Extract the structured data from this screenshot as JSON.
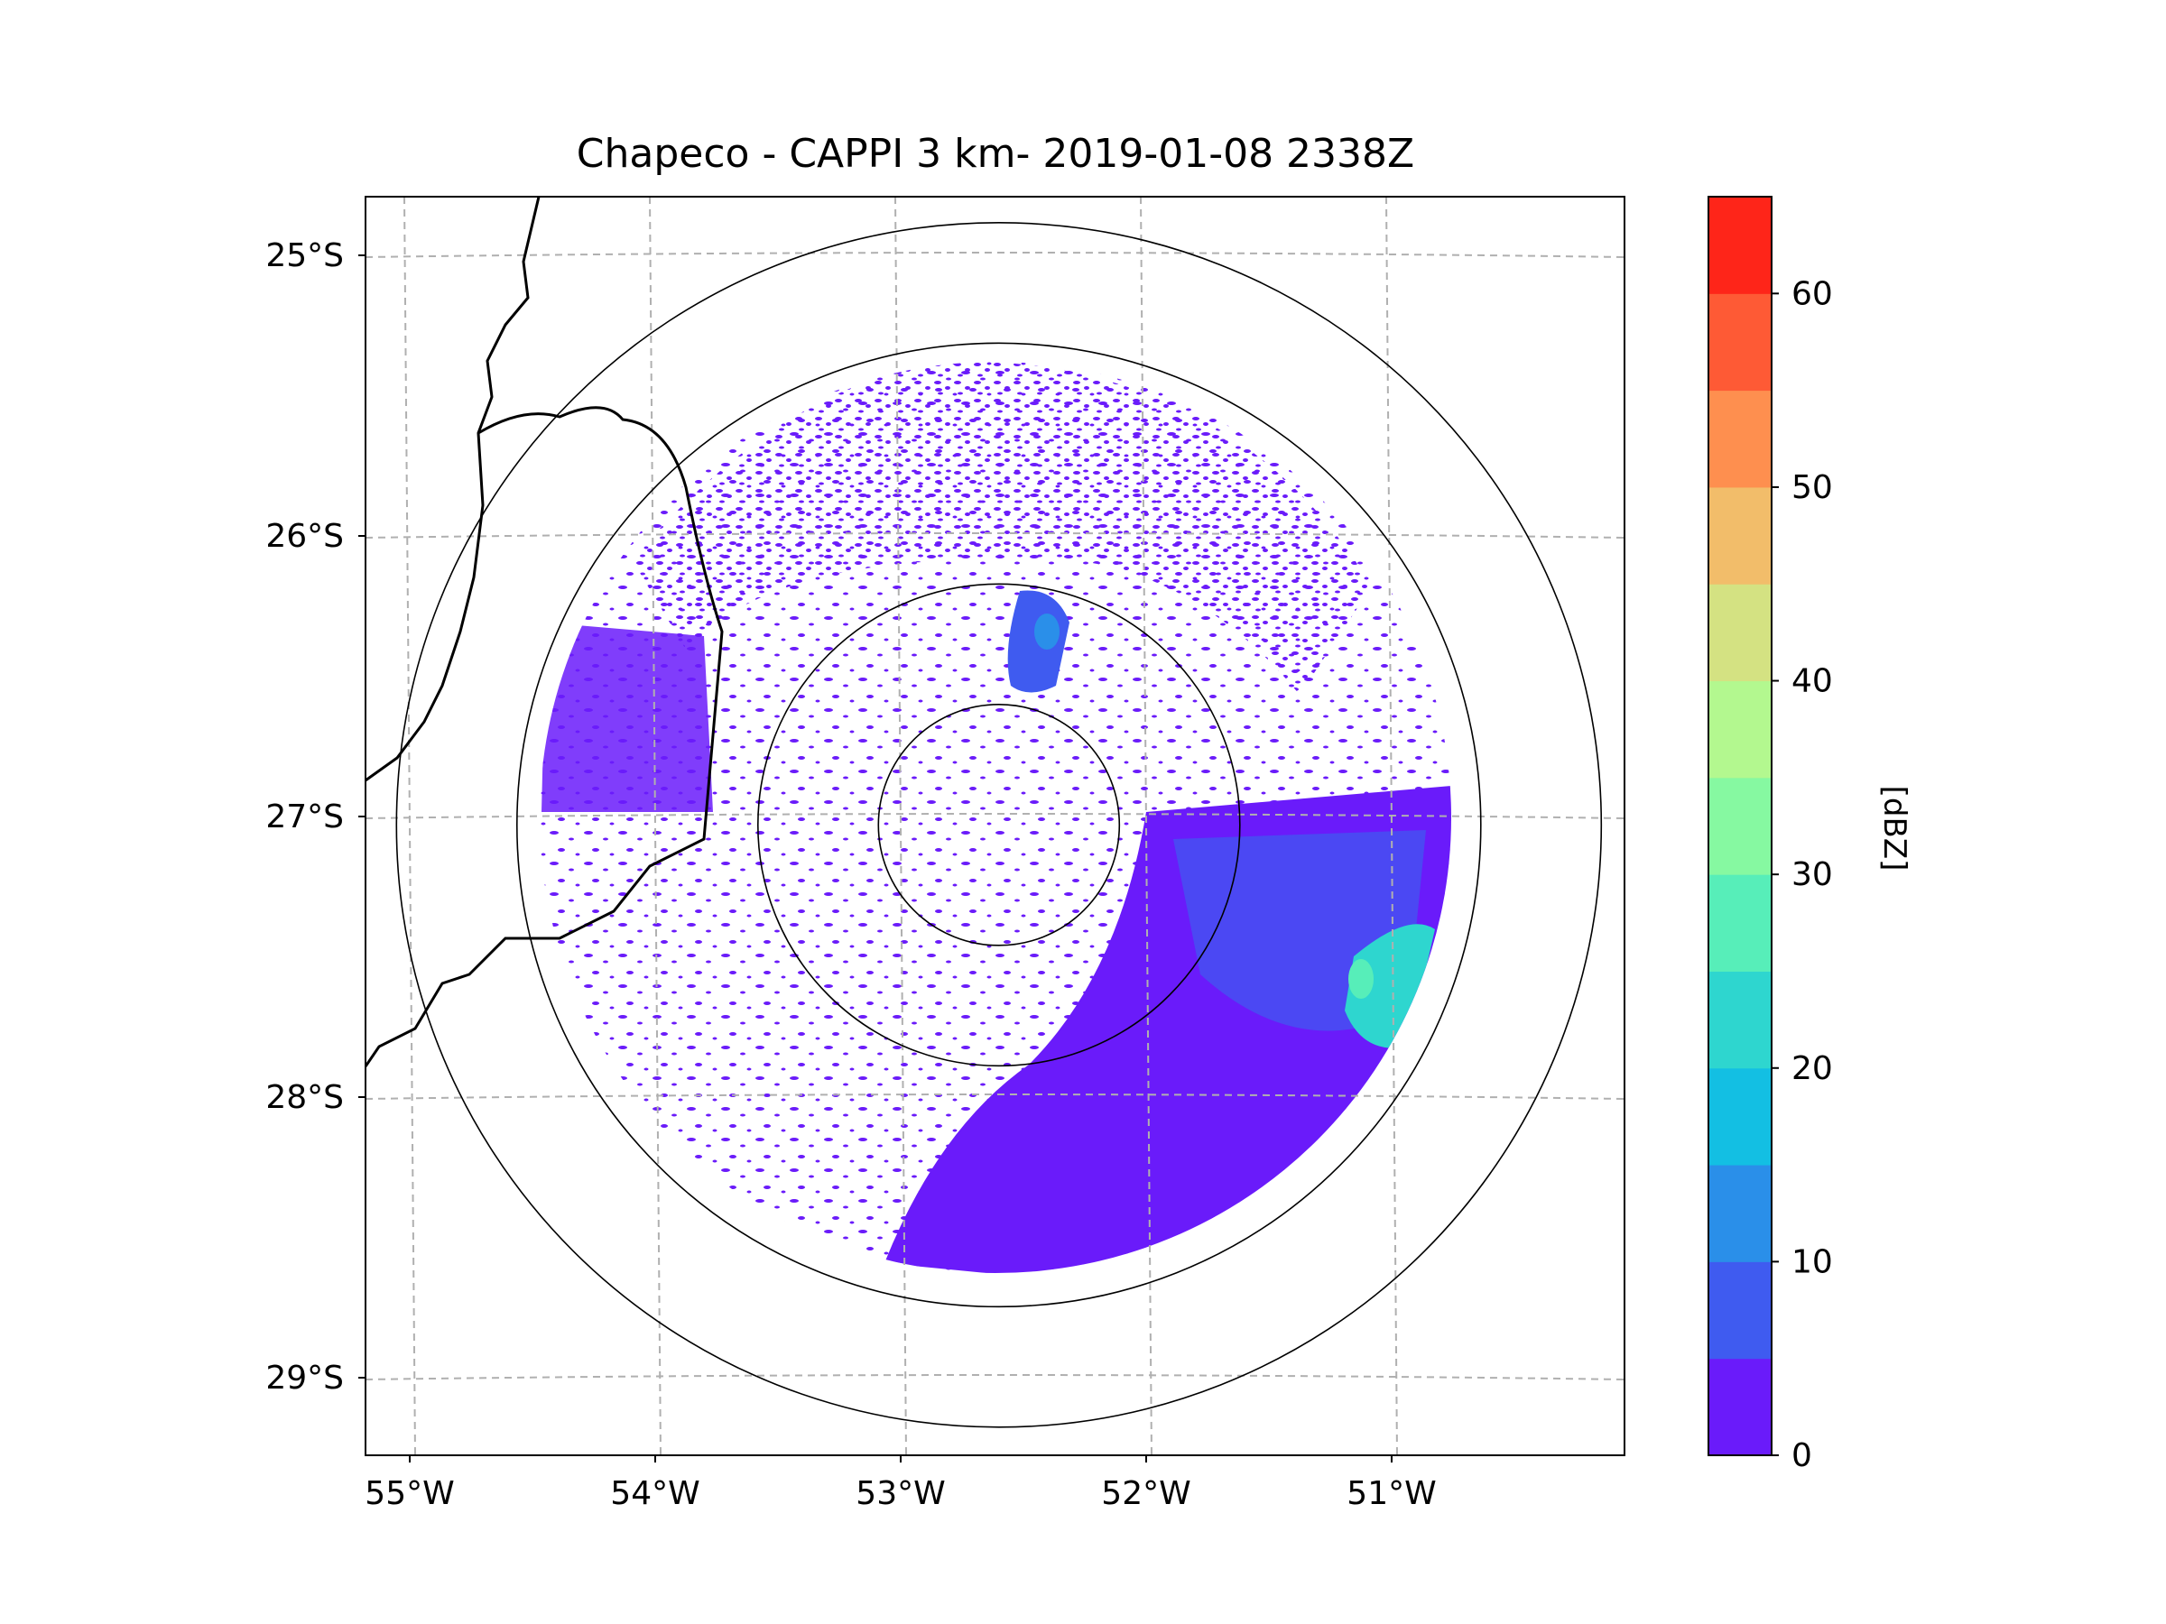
{
  "chart_data": {
    "type": "heatmap",
    "title": "Chapeco - CAPPI 3 km- 2019-01-08 2338Z",
    "xlabel": "",
    "ylabel": "",
    "x_range_deg": [
      -55.2,
      -50.1
    ],
    "y_range_deg": [
      -29.3,
      -24.8
    ],
    "x_ticks": [
      {
        "value": -55,
        "label": "55°W"
      },
      {
        "value": -54,
        "label": "54°W"
      },
      {
        "value": -53,
        "label": "53°W"
      },
      {
        "value": -52,
        "label": "52°W"
      },
      {
        "value": -51,
        "label": "51°W"
      }
    ],
    "y_ticks": [
      {
        "value": -25,
        "label": "25°S"
      },
      {
        "value": -26,
        "label": "26°S"
      },
      {
        "value": -27,
        "label": "27°S"
      },
      {
        "value": -28,
        "label": "28°S"
      },
      {
        "value": -29,
        "label": "29°S"
      }
    ],
    "grid": true,
    "radar_center": {
      "lon": -52.6,
      "lat": -27.03
    },
    "range_rings_km": [
      50,
      100,
      200,
      250
    ],
    "colorbar": {
      "label": "[dBZ]",
      "min": 0,
      "max": 65,
      "step": 5,
      "tick_labels": [
        "0",
        "10",
        "20",
        "30",
        "40",
        "50",
        "60"
      ],
      "colors": [
        "#6a1bfa",
        "#3f5bf0",
        "#2a8fe9",
        "#13bfe3",
        "#2ed6cf",
        "#57eeb9",
        "#86f9a1",
        "#b3f88f",
        "#d4e282",
        "#f2bd6a",
        "#fe8f4f",
        "#fe5a35",
        "#fe2519"
      ]
    },
    "echo_regions": [
      {
        "area": "north sector, 50-200 km",
        "dbz_range": [
          0,
          10
        ]
      },
      {
        "area": "west sector strip, 100-200 km",
        "dbz_range": [
          0,
          10
        ]
      },
      {
        "area": "southeast quadrant, 50-200 km",
        "dbz_range": [
          0,
          15
        ]
      },
      {
        "area": "east edge near 27.7°S 51.1°W",
        "dbz_range": [
          15,
          30
        ]
      },
      {
        "area": "north near 26.5°S 52.4°W",
        "dbz_range": [
          5,
          15
        ]
      }
    ]
  }
}
